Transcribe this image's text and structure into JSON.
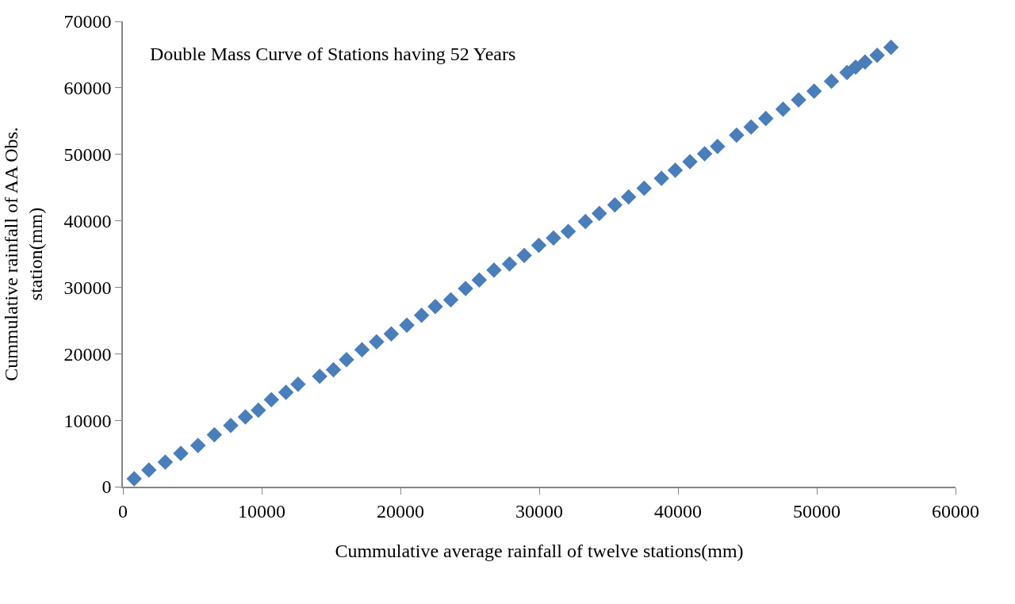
{
  "chart_data": {
    "type": "scatter",
    "xlabel": "Cummulative average rainfall of twelve stations(mm)",
    "ylabel": "Cummulative rainfall of AA Obs.\nstation(mm)",
    "annotations": [
      "Double Mass Curve of Stations having 52 Years"
    ],
    "x": [
      810,
      1870,
      3050,
      4170,
      5410,
      6590,
      7770,
      8830,
      9760,
      10700,
      11750,
      12620,
      14180,
      15170,
      16110,
      17230,
      18280,
      19340,
      20460,
      21520,
      22510,
      23630,
      24690,
      25680,
      26740,
      27860,
      28920,
      29970,
      31030,
      32090,
      33330,
      34330,
      35450,
      36440,
      37560,
      38810,
      39800,
      40860,
      41920,
      42850,
      44220,
      45270,
      46330,
      47570,
      48690,
      49810,
      51060,
      52180,
      52800,
      53480,
      54350,
      55350
    ],
    "series": [
      {
        "color": "#4a7ebb",
        "values": [
          1200,
          2500,
          3700,
          5000,
          6200,
          7800,
          9200,
          10500,
          11500,
          13100,
          14200,
          15400,
          16600,
          17600,
          19100,
          20600,
          21800,
          23000,
          24300,
          25800,
          27100,
          28100,
          29800,
          31100,
          32600,
          33500,
          34800,
          36300,
          37400,
          38400,
          39900,
          41100,
          42400,
          43600,
          44900,
          46400,
          47600,
          48900,
          50100,
          51200,
          52900,
          54100,
          55400,
          56800,
          58200,
          59500,
          61000,
          62300,
          63100,
          63900,
          64900,
          66100
        ]
      }
    ],
    "xlim": [
      0,
      60000
    ],
    "xticks": [
      0,
      10000,
      20000,
      30000,
      40000,
      50000,
      60000
    ],
    "ylim": [
      0,
      70000
    ],
    "yticks": [
      0,
      10000,
      20000,
      30000,
      40000,
      50000,
      60000,
      70000
    ],
    "marker": "diamond"
  }
}
